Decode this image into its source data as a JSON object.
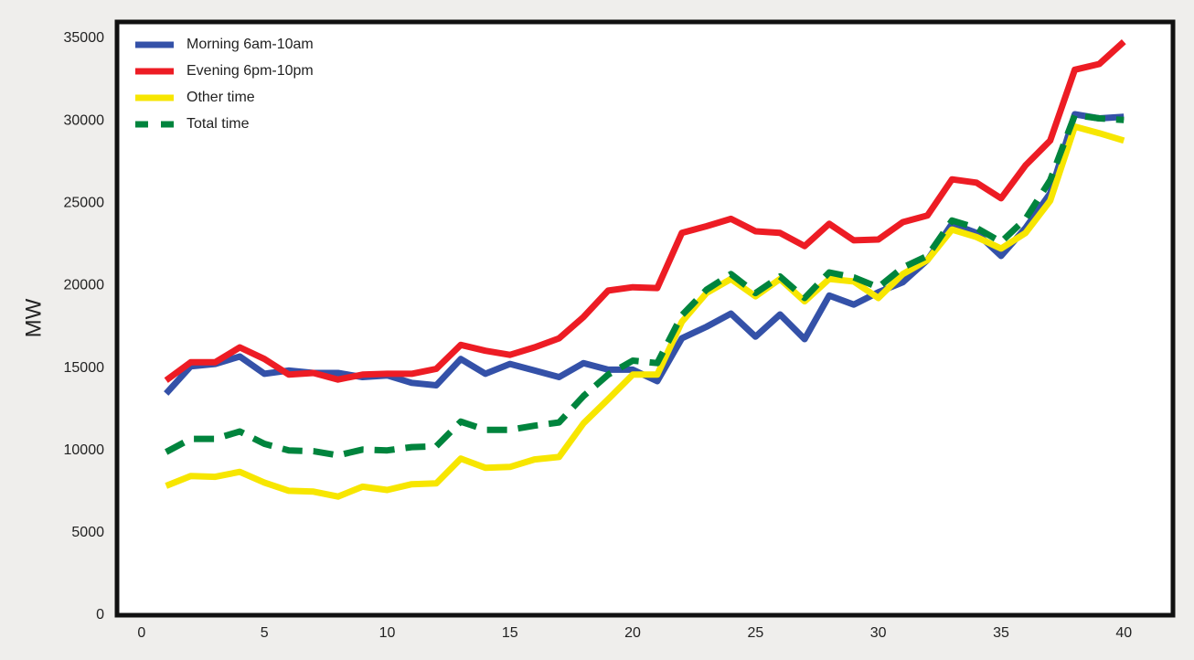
{
  "chart_data": {
    "type": "line",
    "y_label": "MW",
    "x": [
      1,
      2,
      3,
      4,
      5,
      6,
      7,
      8,
      9,
      10,
      11,
      12,
      13,
      14,
      15,
      16,
      17,
      18,
      19,
      20,
      21,
      22,
      23,
      24,
      25,
      26,
      27,
      28,
      29,
      30,
      31,
      32,
      33,
      34,
      35,
      36,
      37,
      38,
      39,
      40
    ],
    "series": [
      {
        "name": "Morning 6am-10am",
        "color": "#3451a8",
        "style": "solid",
        "values": [
          13450,
          15100,
          15250,
          15700,
          14650,
          14850,
          14700,
          14700,
          14450,
          14550,
          14100,
          13950,
          15550,
          14650,
          15250,
          14850,
          14450,
          15300,
          14900,
          14900,
          14200,
          16800,
          17500,
          18300,
          16900,
          18250,
          16750,
          19400,
          18850,
          19600,
          20200,
          21550,
          23750,
          23200,
          21800,
          23500,
          25600,
          30400,
          30150,
          30250
        ]
      },
      {
        "name": "Evening 6pm-10pm",
        "color": "#ed1c24",
        "style": "solid",
        "values": [
          14250,
          15350,
          15350,
          16250,
          15550,
          14600,
          14700,
          14300,
          14600,
          14650,
          14650,
          14950,
          16400,
          16050,
          15800,
          16250,
          16800,
          18100,
          19700,
          19900,
          19850,
          23200,
          23600,
          24050,
          23300,
          23200,
          22400,
          23750,
          22750,
          22800,
          23850,
          24250,
          26450,
          26250,
          25300,
          27300,
          28800,
          33100,
          33450,
          34800
        ]
      },
      {
        "name": "Other time",
        "color": "#f7e600",
        "style": "solid",
        "values": [
          7850,
          8450,
          8400,
          8700,
          8050,
          7550,
          7500,
          7200,
          7800,
          7600,
          7950,
          8000,
          9500,
          8950,
          9000,
          9450,
          9600,
          11650,
          13100,
          14600,
          14600,
          17800,
          19550,
          20400,
          19350,
          20400,
          19050,
          20400,
          20250,
          19250,
          20700,
          21550,
          23400,
          22950,
          22250,
          23200,
          25150,
          29650,
          29250,
          28800
        ]
      },
      {
        "name": "Total time",
        "color": "#00843d",
        "style": "dashed",
        "values": [
          9900,
          10700,
          10700,
          11150,
          10400,
          10000,
          9950,
          9700,
          10050,
          10000,
          10200,
          10250,
          11750,
          11250,
          11250,
          11500,
          11700,
          13300,
          14600,
          15450,
          15300,
          18200,
          19750,
          20700,
          19550,
          20550,
          19250,
          20800,
          20500,
          19900,
          21100,
          21800,
          23950,
          23500,
          22650,
          24050,
          26400,
          30350,
          30150,
          30050
        ]
      }
    ],
    "xlim": [
      -1,
      42
    ],
    "ylim": [
      0,
      36000
    ],
    "xticks": [
      0,
      5,
      10,
      15,
      20,
      25,
      30,
      35,
      40
    ],
    "yticks": [
      0,
      5000,
      10000,
      15000,
      20000,
      25000,
      30000,
      35000
    ],
    "grid": false,
    "legend": "upper-left"
  }
}
